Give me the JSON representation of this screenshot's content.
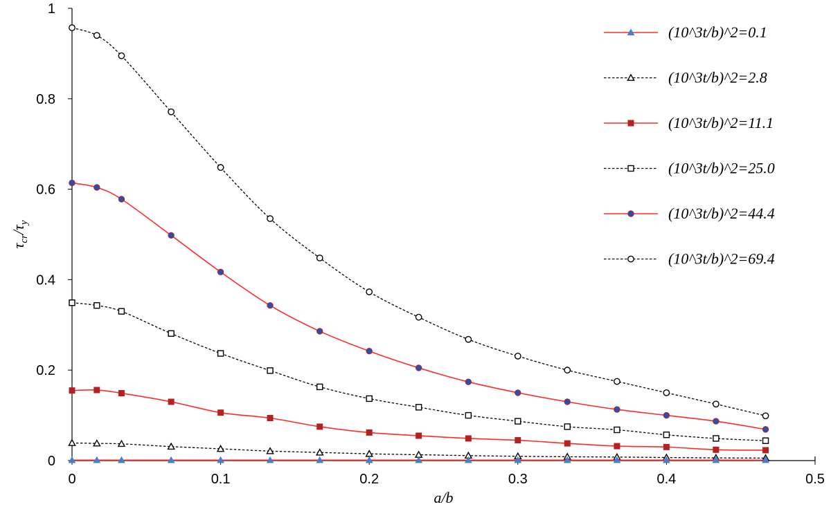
{
  "chart_data": {
    "type": "line",
    "title": "",
    "xlabel": "a/b",
    "ylabel": {
      "main": "τ",
      "main_sub": "cr",
      "sep": "/",
      "den": "τ",
      "den_sub": "y"
    },
    "xlim": [
      0,
      0.5
    ],
    "ylim": [
      0,
      1
    ],
    "x_ticks": [
      "0",
      "0.1",
      "0.2",
      "0.3",
      "0.4",
      "0.5"
    ],
    "y_ticks": [
      "0",
      "0.2",
      "0.4",
      "0.6",
      "0.8",
      "1"
    ],
    "grid": false,
    "legend_position": "top-right",
    "x": [
      0,
      0.0167,
      0.0333,
      0.0667,
      0.1,
      0.1333,
      0.1667,
      0.2,
      0.2333,
      0.2667,
      0.3,
      0.3333,
      0.3667,
      0.4,
      0.4333,
      0.4667
    ],
    "series": [
      {
        "name": "(10^3t/b)^2=0.1",
        "color": "#ff2a2a",
        "dash": "solid",
        "marker": "triangle-filled",
        "marker_color": "#4a7fc8",
        "values": [
          0.001,
          0.001,
          0.001,
          0.001,
          0.001,
          0.001,
          0.001,
          0.001,
          0.001,
          0.001,
          0.001,
          0.001,
          0.001,
          0.001,
          0.001,
          0.001
        ]
      },
      {
        "name": "(10^3t/b)^2=2.8",
        "color": "#000000",
        "dash": "dashed",
        "marker": "triangle-open",
        "marker_color": "#000000",
        "values": [
          0.039,
          0.038,
          0.037,
          0.031,
          0.026,
          0.021,
          0.018,
          0.015,
          0.013,
          0.011,
          0.0095,
          0.0085,
          0.0078,
          0.0068,
          0.006,
          0.0055
        ]
      },
      {
        "name": "(10^3t/b)^2=11.1",
        "color": "#ff2a2a",
        "dash": "solid",
        "marker": "square-filled",
        "marker_color": "#b22222",
        "values": [
          0.155,
          0.156,
          0.149,
          0.13,
          0.106,
          0.094,
          0.075,
          0.062,
          0.055,
          0.049,
          0.045,
          0.038,
          0.032,
          0.03,
          0.024,
          0.023
        ]
      },
      {
        "name": "(10^3t/b)^2=25.0",
        "color": "#000000",
        "dash": "dashed",
        "marker": "square-open",
        "marker_color": "#000000",
        "values": [
          0.349,
          0.343,
          0.33,
          0.281,
          0.237,
          0.199,
          0.163,
          0.137,
          0.118,
          0.1,
          0.087,
          0.075,
          0.068,
          0.057,
          0.049,
          0.044
        ]
      },
      {
        "name": "(10^3t/b)^2=44.4",
        "color": "#ff2a2a",
        "dash": "solid",
        "marker": "circle-filled",
        "marker_color": "#2a4fb0",
        "values": [
          0.614,
          0.604,
          0.578,
          0.498,
          0.417,
          0.343,
          0.286,
          0.242,
          0.205,
          0.174,
          0.15,
          0.13,
          0.113,
          0.1,
          0.087,
          0.069
        ]
      },
      {
        "name": "(10^3t/b)^2=69.4",
        "color": "#000000",
        "dash": "dashed",
        "marker": "circle-open",
        "marker_color": "#000000",
        "values": [
          0.957,
          0.94,
          0.895,
          0.771,
          0.648,
          0.535,
          0.448,
          0.373,
          0.317,
          0.268,
          0.231,
          0.2,
          0.175,
          0.15,
          0.125,
          0.099
        ]
      }
    ]
  }
}
